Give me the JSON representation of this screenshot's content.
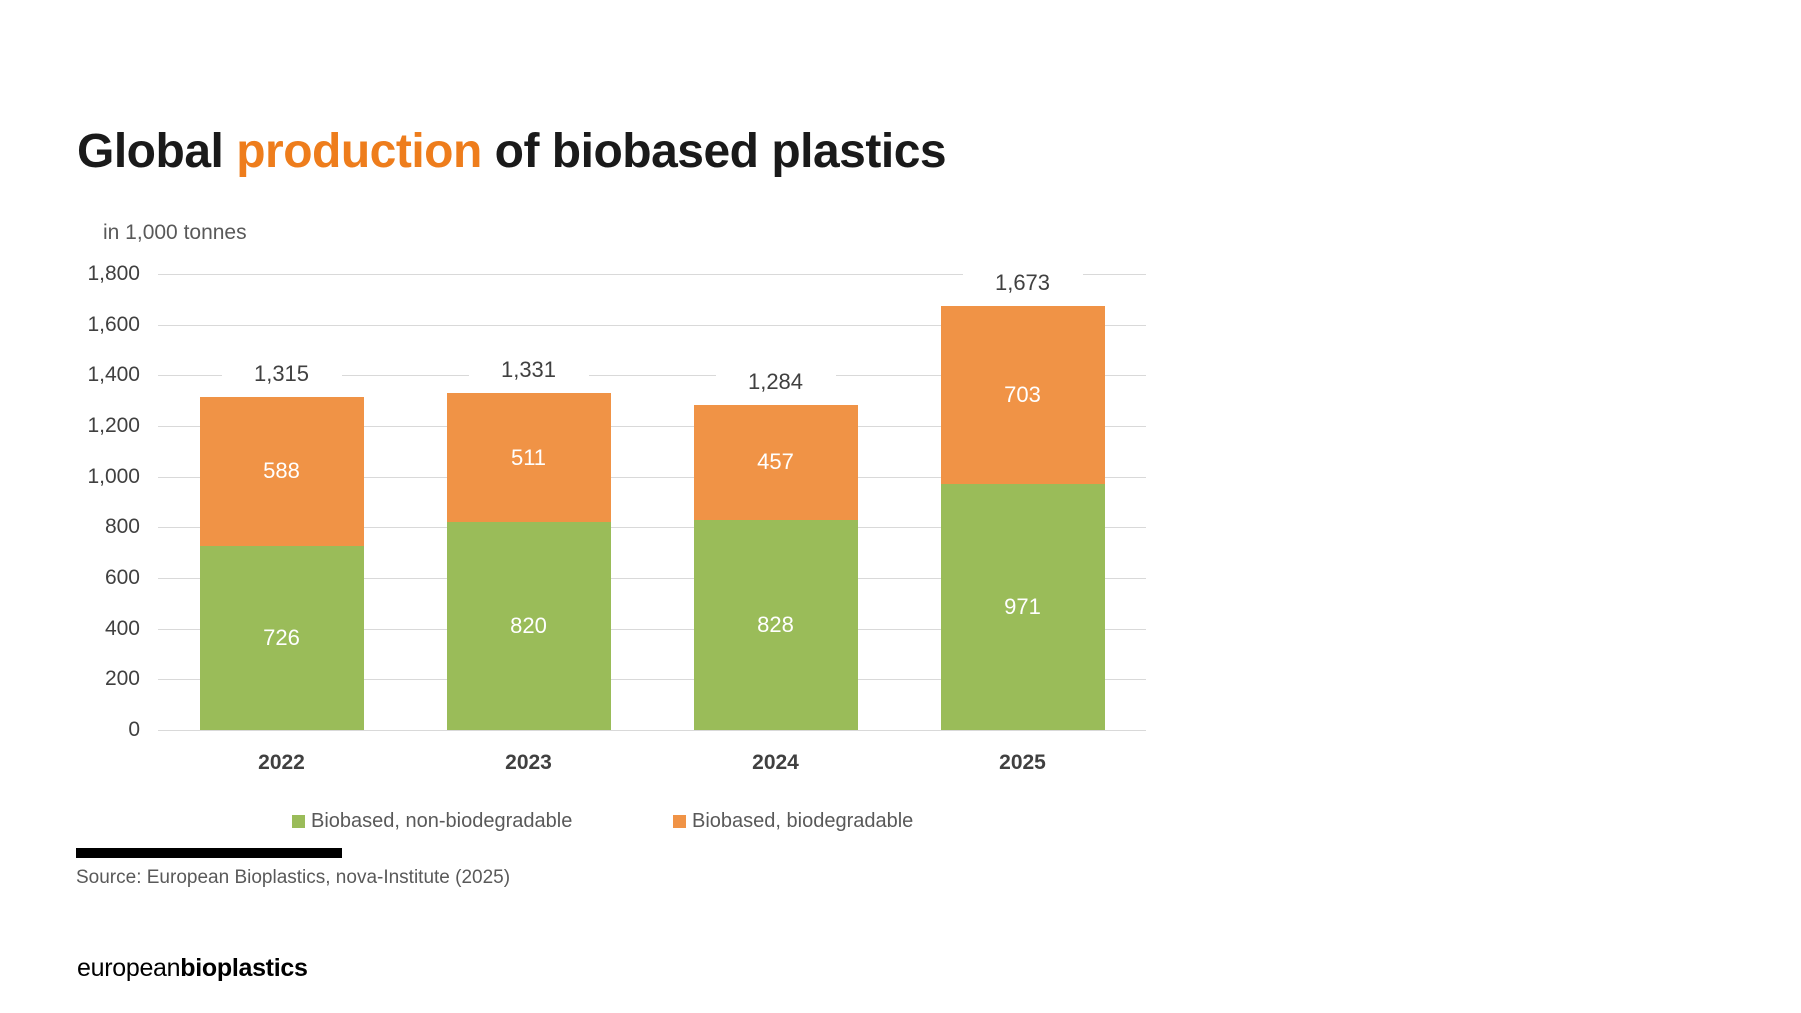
{
  "slide": {
    "title": {
      "prefix": "Global ",
      "highlight": "production",
      "suffix": " of biobased plastics",
      "highlight_color": "#EE7D1C"
    },
    "subtitle": "in 1,000 tonnes",
    "source": "Source: European Bioplastics, nova-Institute (2025)",
    "logo": {
      "normal": "european",
      "bold": "bioplastics"
    }
  },
  "chart_data": {
    "type": "bar",
    "stacked": true,
    "title": "Global production of biobased plastics",
    "unit_label": "in 1,000 tonnes",
    "categories": [
      "2022",
      "2023",
      "2024",
      "2025"
    ],
    "series": [
      {
        "name": "Biobased, non-biodegradable",
        "color": "#9ABC59",
        "values": [
          726,
          820,
          828,
          971
        ]
      },
      {
        "name": "Biobased, biodegradable",
        "color": "#F09346",
        "values": [
          588,
          511,
          457,
          703
        ]
      }
    ],
    "totals": [
      "1,315",
      "1,331",
      "1,284",
      "1,673"
    ],
    "y_ticks": [
      "0",
      "200",
      "400",
      "600",
      "800",
      "1,000",
      "1,200",
      "1,400",
      "1,600",
      "1,800"
    ],
    "ylim": [
      0,
      1800
    ],
    "xlabel": "",
    "ylabel": "in 1,000 tonnes",
    "grid": "horizontal",
    "gridline_color": "#D9D9D9",
    "axis_text_color": "#404040",
    "legend_position": "bottom"
  }
}
